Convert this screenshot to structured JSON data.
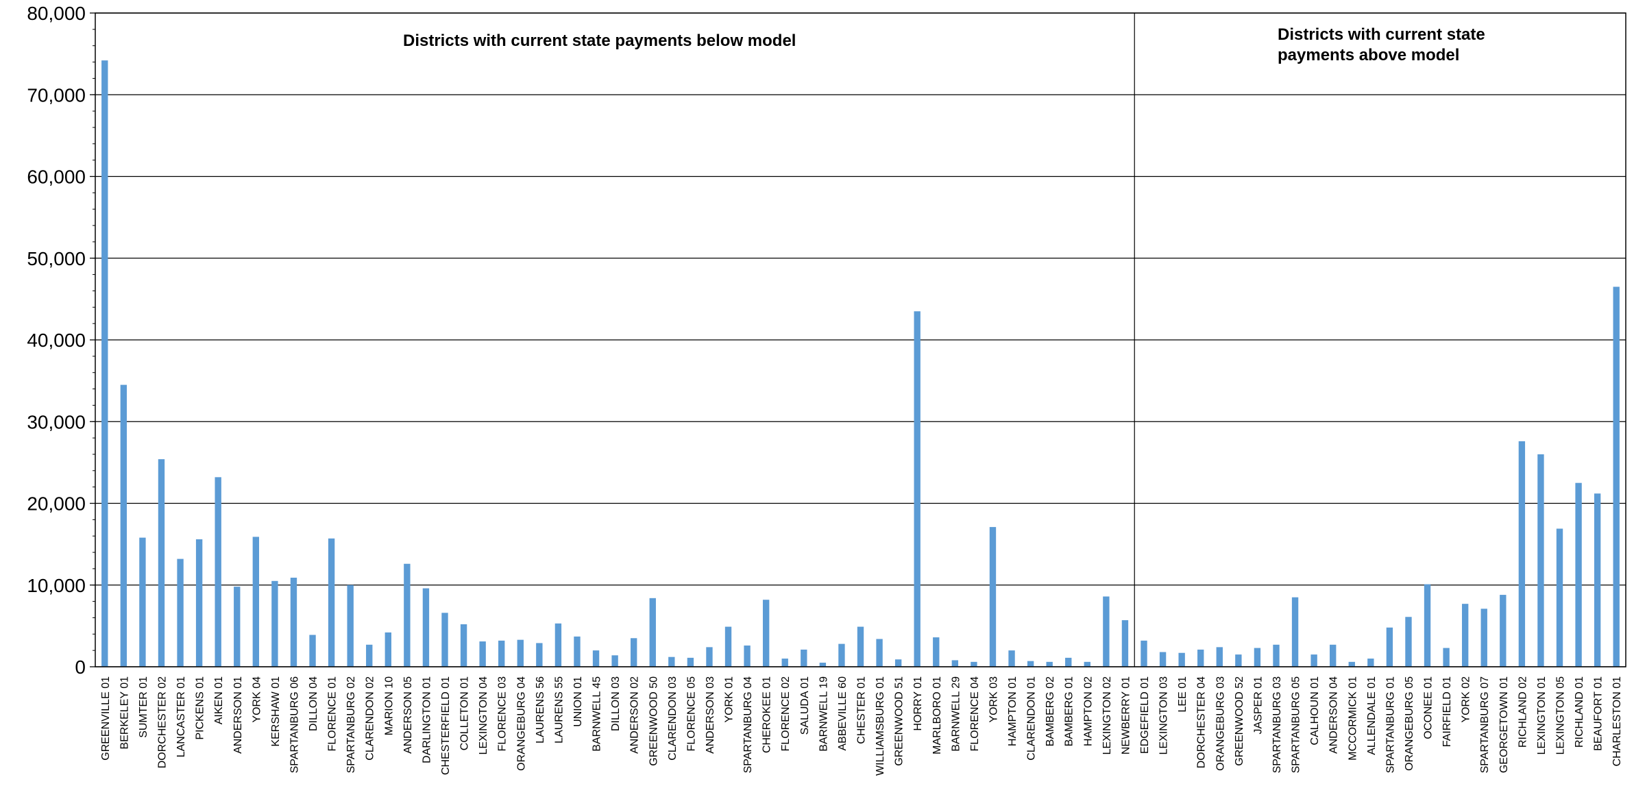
{
  "chart_data": {
    "type": "bar",
    "ylim": [
      0,
      80000
    ],
    "yticks": [
      0,
      10000,
      20000,
      30000,
      40000,
      50000,
      60000,
      70000,
      80000
    ],
    "ytick_labels": [
      "0",
      "10,000",
      "20,000",
      "30,000",
      "40,000",
      "50,000",
      "60,000",
      "70,000",
      "80,000"
    ],
    "grid": true,
    "bar_color": "#5b9bd5",
    "categories": [
      "GREENVILLE 01",
      "BERKELEY 01",
      "SUMTER 01",
      "DORCHESTER 02",
      "LANCASTER 01",
      "PICKENS 01",
      "AIKEN 01",
      "ANDERSON 01",
      "YORK 04",
      "KERSHAW 01",
      "SPARTANBURG 06",
      "DILLON 04",
      "FLORENCE 01",
      "SPARTANBURG 02",
      "CLARENDON 02",
      "MARION 10",
      "ANDERSON 05",
      "DARLINGTON 01",
      "CHESTERFIELD 01",
      "COLLETON 01",
      "LEXINGTON 04",
      "FLORENCE 03",
      "ORANGEBURG 04",
      "LAURENS 56",
      "LAURENS 55",
      "UNION 01",
      "BARNWELL 45",
      "DILLON 03",
      "ANDERSON 02",
      "GREENWOOD 50",
      "CLARENDON 03",
      "FLORENCE 05",
      "ANDERSON 03",
      "YORK 01",
      "SPARTANBURG 04",
      "CHEROKEE 01",
      "FLORENCE 02",
      "SALUDA 01",
      "BARNWELL 19",
      "ABBEVILLE 60",
      "CHESTER 01",
      "WILLIAMSBURG 01",
      "GREENWOOD 51",
      "HORRY 01",
      "MARLBORO 01",
      "BARNWELL 29",
      "FLORENCE 04",
      "YORK 03",
      "HAMPTON 01",
      "CLARENDON 01",
      "BAMBERG 02",
      "BAMBERG 01",
      "HAMPTON 02",
      "LEXINGTON 02",
      "NEWBERRY 01",
      "EDGEFIELD 01",
      "LEXINGTON 03",
      "LEE 01",
      "DORCHESTER 04",
      "ORANGEBURG 03",
      "GREENWOOD 52",
      "JASPER 01",
      "SPARTANBURG 03",
      "SPARTANBURG 05",
      "CALHOUN 01",
      "ANDERSON 04",
      "MCCORMICK 01",
      "ALLENDALE 01",
      "SPARTANBURG 01",
      "ORANGEBURG 05",
      "OCONEE 01",
      "FAIRFIELD 01",
      "YORK 02",
      "SPARTANBURG 07",
      "GEORGETOWN 01",
      "RICHLAND 02",
      "LEXINGTON 01",
      "LEXINGTON 05",
      "RICHLAND 01",
      "BEAUFORT 01",
      "CHARLESTON 01"
    ],
    "values": [
      74200,
      34500,
      15800,
      25400,
      13200,
      15600,
      23200,
      9800,
      15900,
      10500,
      10900,
      3900,
      15700,
      10000,
      2700,
      4200,
      12600,
      9600,
      6600,
      5200,
      3100,
      3200,
      3300,
      2900,
      5300,
      3700,
      2000,
      1400,
      3500,
      8400,
      1200,
      1100,
      2400,
      4900,
      2600,
      8200,
      1000,
      2100,
      500,
      2800,
      4900,
      3400,
      900,
      43500,
      3600,
      800,
      600,
      17100,
      2000,
      700,
      600,
      1100,
      600,
      8600,
      5700,
      3200,
      1800,
      1700,
      2100,
      2400,
      1500,
      2300,
      2700,
      8500,
      1500,
      2700,
      600,
      1000,
      4800,
      6100,
      10100,
      2300,
      7700,
      7100,
      8800,
      27600,
      26000,
      16900,
      22500,
      21200,
      46500
    ],
    "groups": [
      {
        "label": "Districts with current state payments below model",
        "count": 55
      },
      {
        "label_lines": [
          "Districts with current state",
          "payments above model"
        ],
        "count": 26
      }
    ]
  }
}
